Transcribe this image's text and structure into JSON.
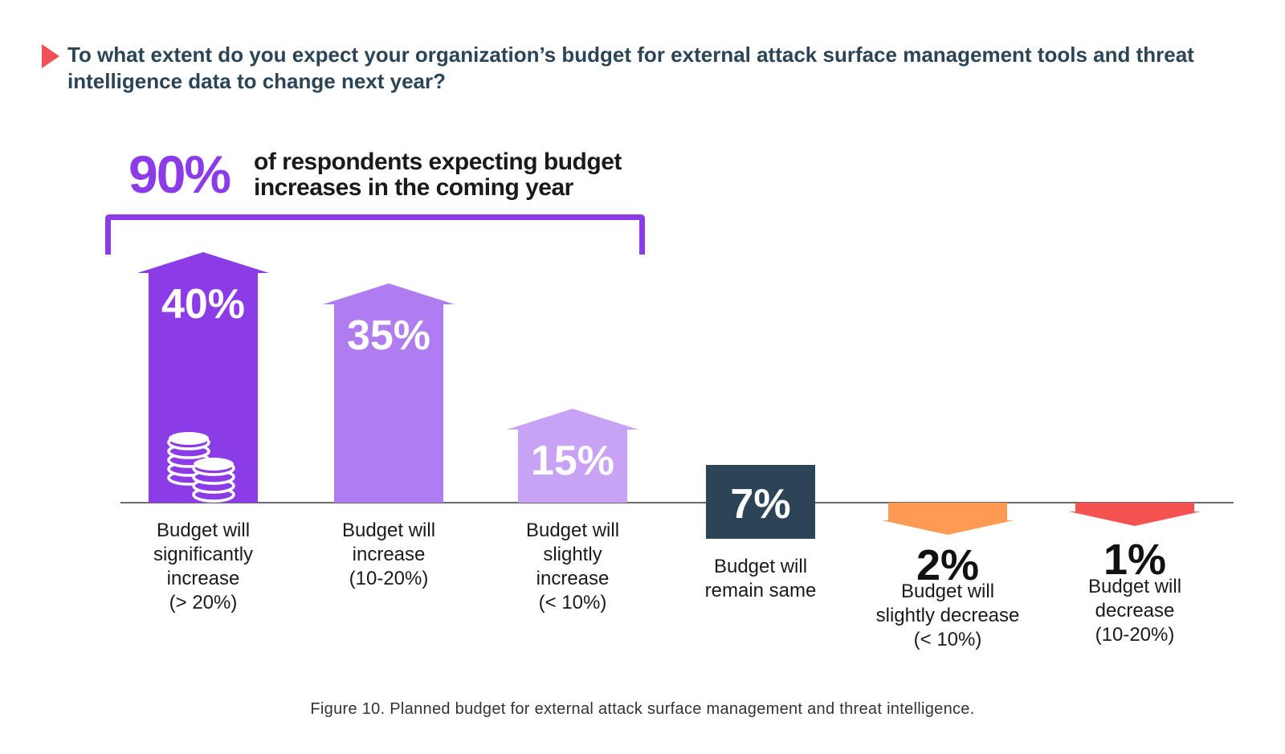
{
  "title": "To what extent do you expect your organization’s budget for external attack surface management tools and threat intelligence data to change next year?",
  "callout": {
    "value": "90%",
    "text": "of respondents expecting budget increases in the coming year"
  },
  "caption": "Figure 10. Planned budget for external attack surface management and threat intelligence.",
  "colors": {
    "title": "#2c4556",
    "accent": "#8b3ce6",
    "marker": "#f05154"
  },
  "chart_data": {
    "type": "bar",
    "unit": "%",
    "categories": [
      [
        "Budget will",
        "significantly",
        "increase",
        "(> 20%)"
      ],
      [
        "Budget will",
        "increase",
        "(10-20%)"
      ],
      [
        "Budget will",
        "slightly",
        "increase",
        "(< 10%)"
      ],
      [
        "Budget will",
        "remain same"
      ],
      [
        "Budget will",
        "slightly decrease",
        "(< 10%)"
      ],
      [
        "Budget will",
        "decrease",
        "(10-20%)"
      ]
    ],
    "values": [
      40,
      35,
      15,
      7,
      2,
      1
    ],
    "value_labels": [
      "40%",
      "35%",
      "15%",
      "7%",
      "2%",
      "1%"
    ],
    "directions": [
      "up",
      "up",
      "up",
      "flat",
      "down",
      "down"
    ],
    "colors": [
      "#8b3ce6",
      "#b07df0",
      "#c8a2f5",
      "#2c4556",
      "#ff9a55",
      "#f55252"
    ],
    "icons": [
      "coins-icon",
      "",
      "",
      "",
      "",
      ""
    ]
  }
}
